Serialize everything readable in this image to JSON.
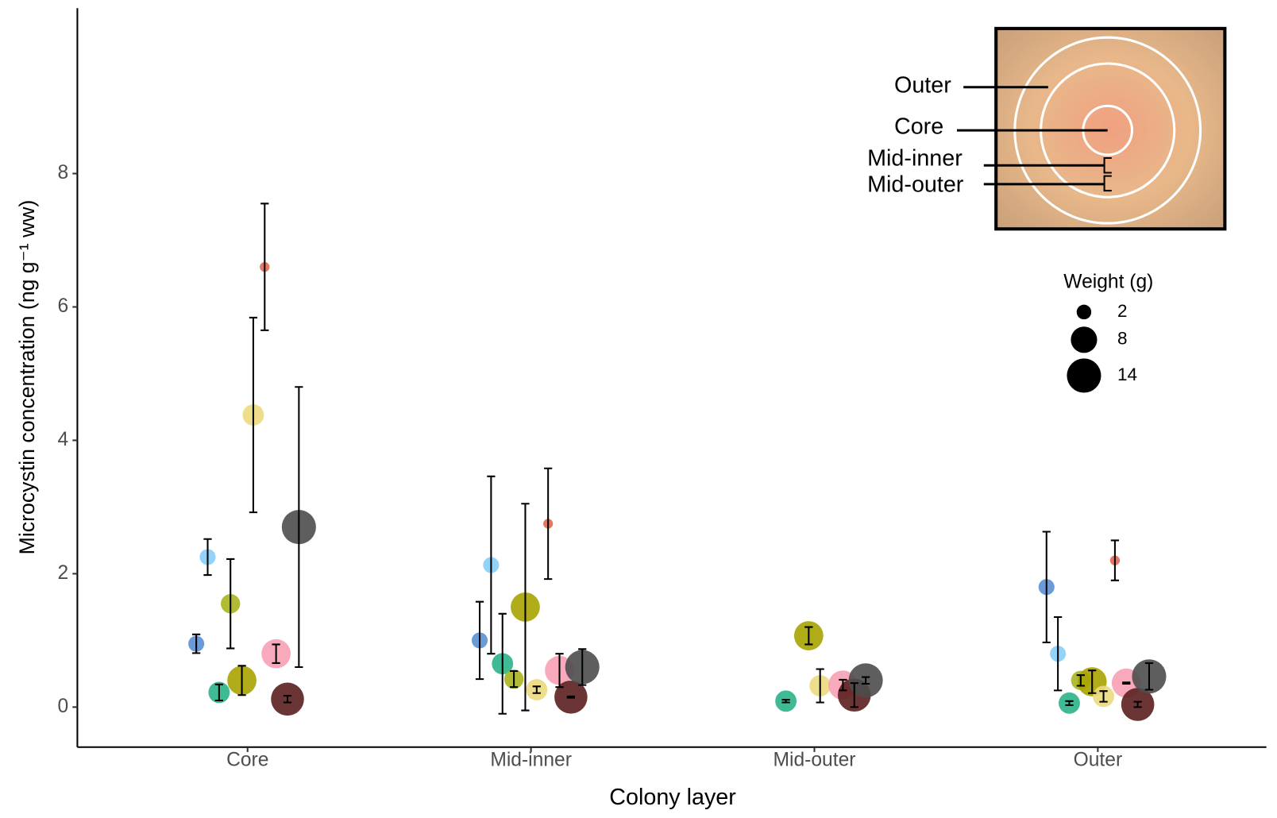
{
  "chart_data": {
    "type": "bubble",
    "x_label": "Colony layer",
    "y_label": "Microcystin concentration (ng g⁻¹ ww)",
    "categories": [
      "Core",
      "Mid-inner",
      "Mid-outer",
      "Outer"
    ],
    "ylim": [
      -0.6,
      10.48
    ],
    "yticks": [
      0,
      2,
      4,
      6,
      8
    ],
    "size_legend_title": "Weight (g)",
    "size_legend": [
      2,
      8,
      14
    ],
    "inset_labels": [
      "Outer",
      "Core",
      "Mid-inner",
      "Mid-outer"
    ],
    "series": [
      {
        "color": "#5b8fd4",
        "size": 2.5,
        "values": [
          0.95,
          1.0,
          null,
          1.8
        ],
        "errors": [
          0.14,
          0.58,
          null,
          0.83
        ]
      },
      {
        "color": "#87cefa",
        "size": 2.5,
        "values": [
          2.25,
          2.13,
          null,
          0.8
        ],
        "errors": [
          0.27,
          1.33,
          null,
          0.55
        ]
      },
      {
        "color": "#2bb38a",
        "size": 5,
        "values": [
          0.22,
          0.65,
          0.09,
          0.06
        ],
        "errors": [
          0.12,
          0.75,
          0.02,
          0.03
        ]
      },
      {
        "color": "#a9b51e",
        "size": 4,
        "values": [
          1.55,
          0.42,
          null,
          0.4
        ],
        "errors": [
          0.67,
          0.12,
          null,
          0.08
        ]
      },
      {
        "color": "#a8a300",
        "size": 10,
        "values": [
          0.4,
          1.5,
          1.07,
          0.38
        ],
        "errors": [
          0.22,
          1.55,
          0.13,
          0.17
        ]
      },
      {
        "color": "#ecd97e",
        "size": 5,
        "values": [
          4.38,
          0.26,
          0.32,
          0.16
        ],
        "errors": [
          1.46,
          0.05,
          0.25,
          0.08
        ]
      },
      {
        "color": "#e06a50",
        "size": 0.5,
        "values": [
          6.6,
          2.75,
          null,
          2.2
        ],
        "errors": [
          0.95,
          0.83,
          null,
          0.3
        ]
      },
      {
        "color": "#f7a1b5",
        "size": 10,
        "values": [
          0.8,
          0.55,
          0.33,
          0.36
        ],
        "errors": [
          0.14,
          0.25,
          0.08,
          0.01
        ]
      },
      {
        "color": "#5c1f1f",
        "size": 13,
        "values": [
          0.12,
          0.15,
          0.18,
          0.04
        ],
        "errors": [
          0.05,
          0.01,
          0.18,
          0.04
        ]
      },
      {
        "color": "#4d4d4d",
        "size": 14,
        "values": [
          2.7,
          0.6,
          0.4,
          0.46
        ],
        "errors": [
          2.1,
          0.27,
          0.05,
          0.2
        ]
      }
    ]
  }
}
